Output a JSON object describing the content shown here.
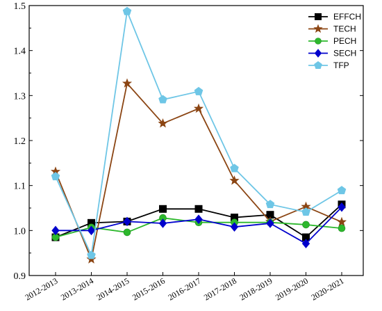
{
  "chart_data": {
    "type": "line",
    "title": "",
    "xlabel": "",
    "ylabel": "",
    "categories": [
      "2012-2013",
      "2013-2014",
      "2014-2015",
      "2015-2016",
      "2016-2017",
      "2017-2018",
      "2018-2019",
      "2019-2020",
      "2020-2021"
    ],
    "ylim": [
      0.9,
      1.5
    ],
    "yticks": [
      "0.9",
      "1.0",
      "1.1",
      "1.2",
      "1.3",
      "1.4",
      "1.5"
    ],
    "grid": false,
    "legend_position": "top-right",
    "series": [
      {
        "name": "EFFCH",
        "color": "#000000",
        "marker": "square",
        "values": [
          0.985,
          1.017,
          1.02,
          1.048,
          1.048,
          1.029,
          1.035,
          0.985,
          1.058
        ]
      },
      {
        "name": "TECH",
        "color": "#8B4513",
        "marker": "star",
        "values": [
          1.131,
          0.936,
          1.327,
          1.238,
          1.271,
          1.111,
          1.02,
          1.053,
          1.019
        ]
      },
      {
        "name": "PECH",
        "color": "#2DB82D",
        "marker": "circle",
        "values": [
          0.985,
          1.007,
          0.996,
          1.028,
          1.018,
          1.018,
          1.018,
          1.013,
          1.005
        ]
      },
      {
        "name": "SECH",
        "color": "#0000CC",
        "marker": "diamond",
        "values": [
          1.0,
          1.0,
          1.02,
          1.016,
          1.025,
          1.008,
          1.016,
          0.971,
          1.052
        ]
      },
      {
        "name": "TFP",
        "color": "#6EC6E6",
        "marker": "pentagon",
        "values": [
          1.12,
          0.945,
          1.487,
          1.291,
          1.309,
          1.138,
          1.058,
          1.041,
          1.089
        ]
      }
    ]
  }
}
